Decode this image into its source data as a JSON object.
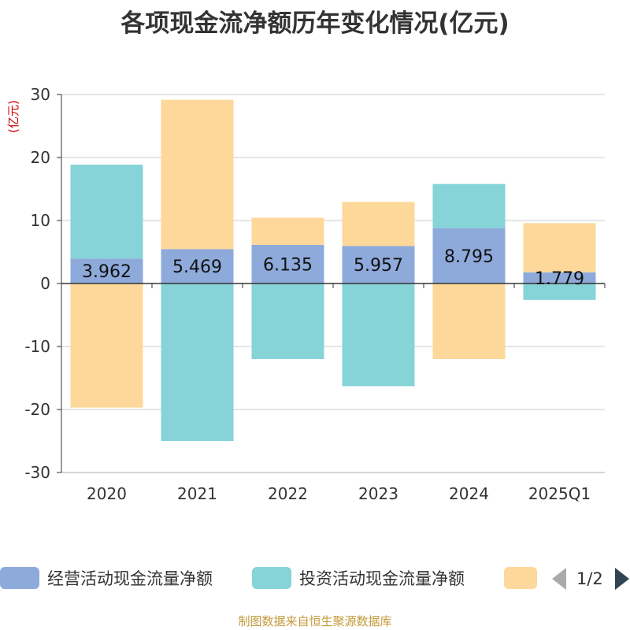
{
  "chart_data": {
    "type": "bar",
    "stacked": true,
    "title": "各项现金流净额历年变化情况(亿元)",
    "ylabel": "(亿元)",
    "xlabel": "",
    "ylim": [
      -30,
      30
    ],
    "yticks": [
      -30,
      -20,
      -10,
      0,
      10,
      20,
      30
    ],
    "categories": [
      "2020",
      "2021",
      "2022",
      "2023",
      "2024",
      "2025Q1"
    ],
    "series": [
      {
        "name": "经营活动现金流量净额",
        "color": "#8eaadb",
        "values": [
          3.962,
          5.469,
          6.135,
          5.957,
          8.795,
          1.779
        ],
        "labels": [
          "3.962",
          "5.469",
          "6.135",
          "5.957",
          "8.795",
          "1.779"
        ]
      },
      {
        "name": "投资活动现金流量净额",
        "color": "#86d3d8",
        "values": [
          14.9,
          -25.0,
          -12.0,
          -16.3,
          7.0,
          -2.6
        ]
      },
      {
        "name": "",
        "color": "#fdd89a",
        "values": [
          -19.7,
          23.7,
          4.3,
          7.0,
          -12.0,
          7.8
        ]
      }
    ],
    "grid": true,
    "legend_position": "bottom"
  },
  "legend": {
    "page_indicator": "1/2"
  },
  "source_note": "制图数据来自恒生聚源数据库"
}
